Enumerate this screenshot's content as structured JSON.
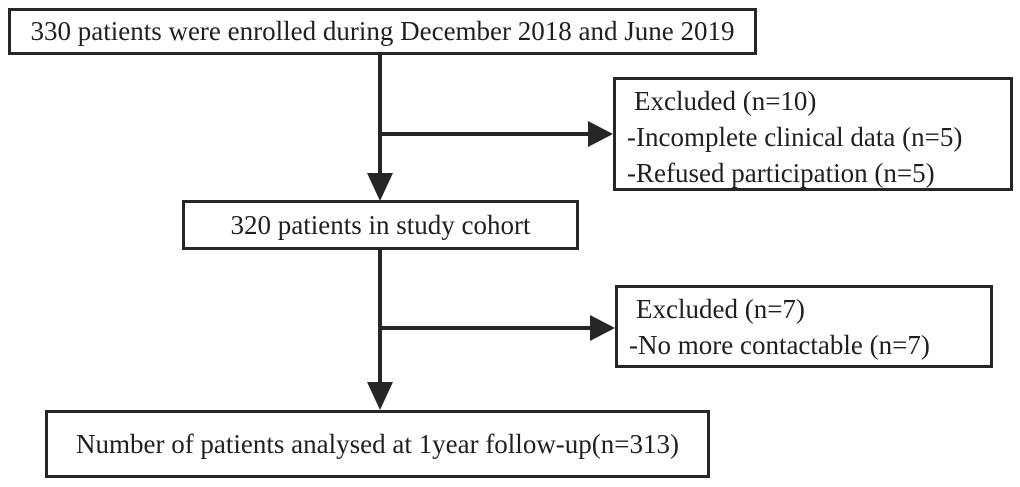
{
  "diagram": {
    "type": "flowchart",
    "colors": {
      "background": "#ffffff",
      "line": "#262626",
      "text": "#1f1f1f"
    },
    "nodes": {
      "enrolled": {
        "text": "330 patients were enrolled during December 2018 and June 2019"
      },
      "excluded1": {
        "title": "Excluded (n=10)",
        "item1": "-Incomplete clinical data (n=5)",
        "item2": "-Refused participation (n=5)"
      },
      "cohort": {
        "text": "320 patients in study cohort"
      },
      "excluded2": {
        "title": "Excluded (n=7)",
        "item1": "-No more contactable (n=7)"
      },
      "analysed": {
        "text": "Number of patients analysed at 1year follow-up(n=313)"
      }
    },
    "edges": [
      {
        "from": "enrolled",
        "to": "cohort"
      },
      {
        "from": "enrolled",
        "to": "excluded1"
      },
      {
        "from": "cohort",
        "to": "analysed"
      },
      {
        "from": "cohort",
        "to": "excluded2"
      }
    ]
  }
}
